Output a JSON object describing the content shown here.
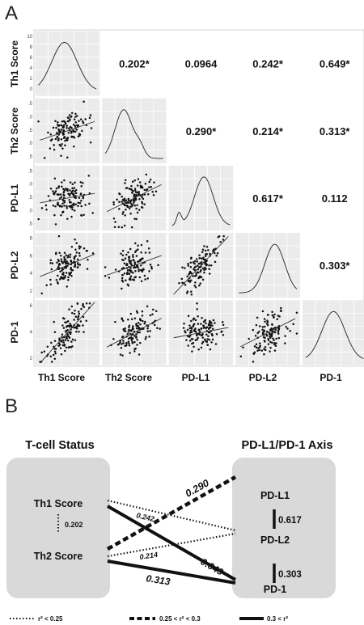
{
  "panel_a": {
    "letter": "A",
    "variables": [
      "Th1 Score",
      "Th2 Score",
      "PD-L1",
      "PD-L2",
      "PD-1"
    ],
    "row_tick_labels": [
      [
        "10",
        "8",
        "6",
        "4",
        "2",
        "0"
      ],
      [
        ".5",
        ".0",
        ".5",
        ".0",
        ".5"
      ],
      [
        ".5",
        ".0",
        ".5",
        ".0",
        ".5"
      ],
      [
        "8",
        "6",
        "4",
        "2"
      ],
      [
        "6",
        "4",
        "2"
      ]
    ],
    "correlations": [
      {
        "row": 0,
        "col": 1,
        "label": "0.202*"
      },
      {
        "row": 0,
        "col": 2,
        "label": "0.0964"
      },
      {
        "row": 0,
        "col": 3,
        "label": "0.242*"
      },
      {
        "row": 0,
        "col": 4,
        "label": "0.649*"
      },
      {
        "row": 1,
        "col": 2,
        "label": "0.290*"
      },
      {
        "row": 1,
        "col": 3,
        "label": "0.214*"
      },
      {
        "row": 1,
        "col": 4,
        "label": "0.313*"
      },
      {
        "row": 2,
        "col": 3,
        "label": "0.617*"
      },
      {
        "row": 2,
        "col": 4,
        "label": "0.112"
      },
      {
        "row": 3,
        "col": 4,
        "label": "0.303*"
      }
    ]
  },
  "panel_b": {
    "letter": "B",
    "left_title": "T-cell Status",
    "right_title": "PD-L1/PD-1 Axis",
    "left_nodes": [
      "Th1 Score",
      "Th2 Score"
    ],
    "right_nodes": [
      "PD-L1",
      "PD-L2",
      "PD-1"
    ],
    "th1_th2_r2": "0.202",
    "pdl1_pdl2_r2": "0.617",
    "pdl2_pd1_r2": "0.303",
    "edges": [
      {
        "from": "Th1 Score",
        "to": "PD-L2",
        "style": "dotted",
        "label": "0.242"
      },
      {
        "from": "Th1 Score",
        "to": "PD-1",
        "style": "solid",
        "label": "0.649"
      },
      {
        "from": "Th2 Score",
        "to": "PD-L1",
        "style": "dashed",
        "label": "0.290"
      },
      {
        "from": "Th2 Score",
        "to": "PD-L2",
        "style": "dotted",
        "label": "0.214"
      },
      {
        "from": "Th2 Score",
        "to": "PD-1",
        "style": "solid",
        "label": "0.313"
      }
    ],
    "legend": [
      {
        "style": "dotted",
        "label": "r² < 0.25"
      },
      {
        "style": "dashed",
        "label": "0.25 < r² < 0.3"
      },
      {
        "style": "solid",
        "label": "0.3 < r²"
      }
    ]
  }
}
